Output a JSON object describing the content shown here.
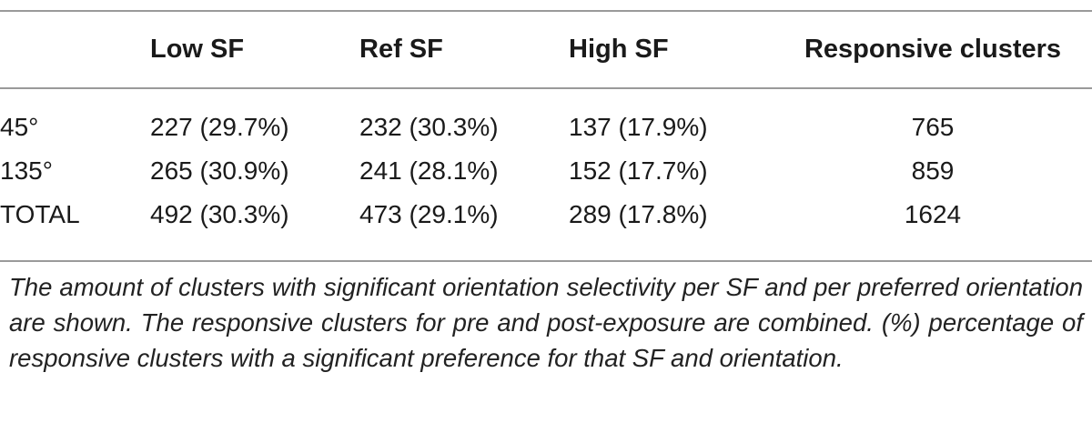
{
  "table": {
    "headers": [
      "",
      "Low SF",
      "Ref SF",
      "High SF",
      "Responsive clusters"
    ],
    "rows": [
      {
        "label": "45°",
        "low_sf": "227 (29.7%)",
        "ref_sf": "232 (30.3%)",
        "high_sf": "137 (17.9%)",
        "responsive": "765"
      },
      {
        "label": "135°",
        "low_sf": "265 (30.9%)",
        "ref_sf": "241 (28.1%)",
        "high_sf": "152 (17.7%)",
        "responsive": "859"
      },
      {
        "label": "TOTAL",
        "low_sf": "492 (30.3%)",
        "ref_sf": "473 (29.1%)",
        "high_sf": "289 (17.8%)",
        "responsive": "1624"
      }
    ]
  },
  "caption": "The amount of clusters with significant orientation selectivity per SF and per preferred orientation are shown. The responsive clusters for pre and post-exposure are combined. (%) percentage of responsive clusters with a significant preference for that SF and orientation."
}
